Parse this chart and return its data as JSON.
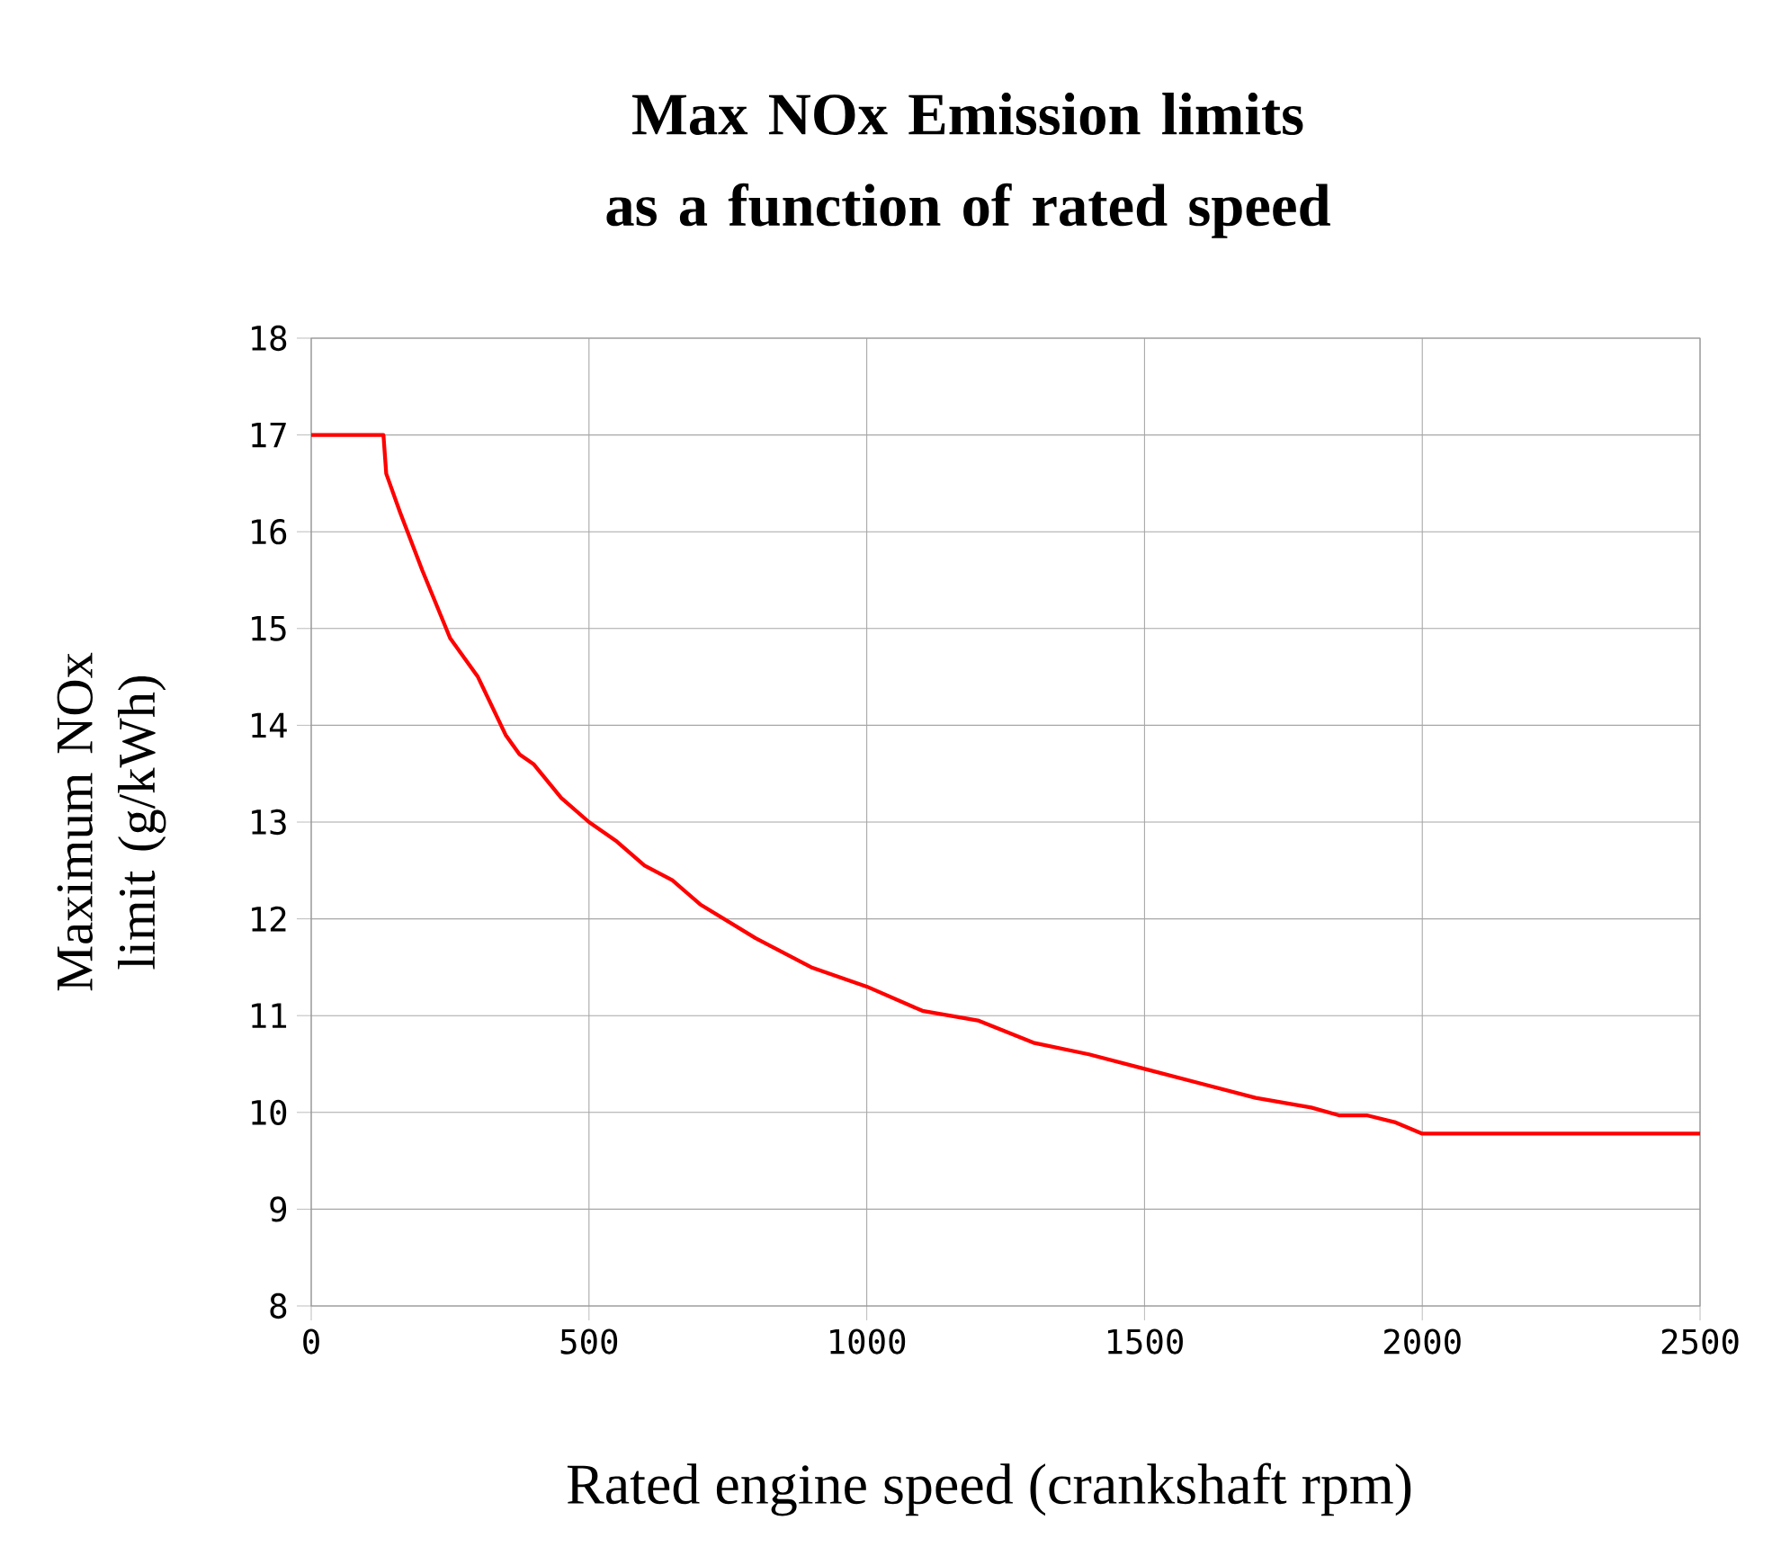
{
  "chart_data": {
    "type": "line",
    "title": "Max NOx Emission limits as a function of rated speed",
    "xlabel": "Rated engine speed (crankshaft rpm)",
    "ylabel": "Maximum NOx limit (g/kWh)",
    "x": [
      0,
      130,
      135,
      160,
      200,
      250,
      300,
      350,
      375,
      400,
      450,
      500,
      550,
      600,
      650,
      700,
      800,
      900,
      1000,
      1100,
      1200,
      1300,
      1400,
      1500,
      1600,
      1700,
      1800,
      1850,
      1900,
      1950,
      2000,
      2500
    ],
    "series": [
      {
        "color": "#ff0000",
        "values": [
          17,
          17,
          16.6,
          16.2,
          15.6,
          14.9,
          14.5,
          13.9,
          13.7,
          13.6,
          13.25,
          13.0,
          12.8,
          12.55,
          12.4,
          12.15,
          11.8,
          11.5,
          11.3,
          11.05,
          10.95,
          10.72,
          10.6,
          10.45,
          10.3,
          10.15,
          10.05,
          9.97,
          9.97,
          9.9,
          9.78,
          9.78
        ]
      }
    ],
    "xlim": [
      0,
      2500
    ],
    "ylim": [
      8,
      18
    ],
    "xticks": [
      0,
      500,
      1000,
      1500,
      2000,
      2500
    ],
    "yticks": [
      8,
      9,
      10,
      11,
      12,
      13,
      14,
      15,
      16,
      17,
      18
    ],
    "grid": true,
    "marker": "none",
    "line_style": "solid"
  }
}
